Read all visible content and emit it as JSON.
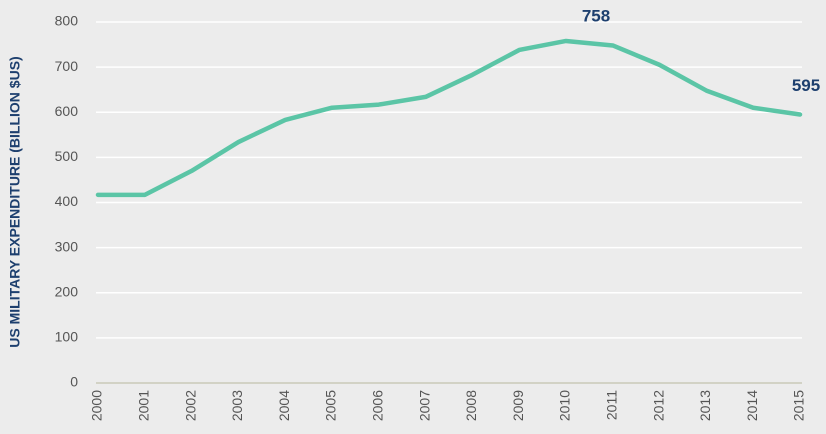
{
  "chart_data": {
    "type": "line",
    "ylabel": "US MILITARY EXPENDITURE (BILLION $US)",
    "categories": [
      "2000",
      "2001",
      "2002",
      "2003",
      "2004",
      "2005",
      "2006",
      "2007",
      "2008",
      "2009",
      "2010",
      "2011",
      "2012",
      "2013",
      "2014",
      "2015"
    ],
    "series": [
      {
        "color": "#5bc5a6",
        "values": [
          417,
          417,
          470,
          534,
          583,
          610,
          617,
          634,
          683,
          738,
          758,
          748,
          705,
          648,
          610,
          595
        ],
        "value_labels": [
          null,
          null,
          null,
          null,
          null,
          null,
          null,
          null,
          null,
          null,
          "758",
          null,
          null,
          null,
          null,
          "595"
        ]
      }
    ],
    "ylim": [
      0,
      800
    ],
    "yticks": [
      0,
      100,
      200,
      300,
      400,
      500,
      600,
      700,
      800
    ],
    "grid": true
  }
}
